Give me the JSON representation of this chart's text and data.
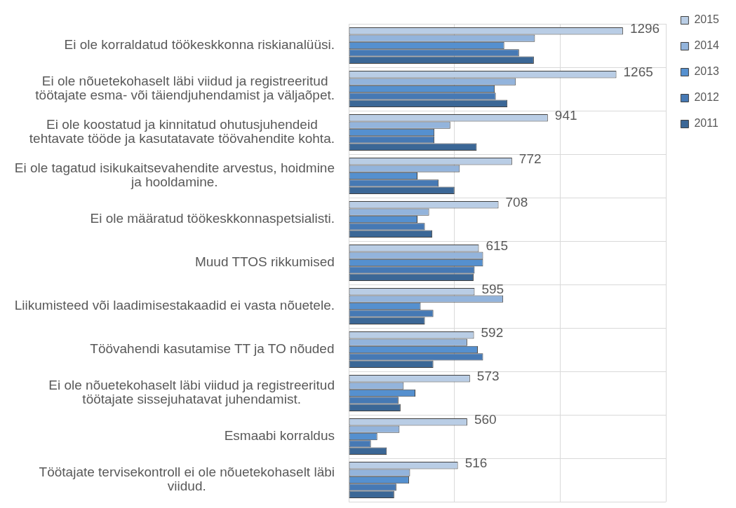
{
  "chart_data": {
    "type": "bar",
    "orientation": "horizontal",
    "categories": [
      "Ei ole korraldatud töökeskkonna riskianalüüsi.",
      "Ei ole nõuetekohaselt läbi viidud ja registreeritud\ntöötajate esma- või täiendjuhendamist ja väljaõpet.",
      "Ei ole koostatud ja kinnitatud ohutusjuhendeid\ntehtavate tööde ja kasutatavate töövahendite kohta.",
      "Ei ole tagatud isikukaitsevahendite arvestus, hoidmine\nja hooldamine.",
      "Ei ole määratud töökeskkonnaspetsialisti.",
      "Muud TTOS rikkumised",
      "Liikumisteed või laadimisestakaadid ei vasta nõuetele.",
      "Töövahendi kasutamise TT ja TO nõuded",
      "Ei ole nõuetekohaselt läbi viidud ja registreeritud\ntöötajate sissejuhatavat juhendamist.",
      "Esmaabi korraldus",
      "Töötajate tervisekontroll ei ole nõuetekohaselt läbi\nviidud."
    ],
    "series": [
      {
        "name": "2015",
        "color": "#b9cde5",
        "values": [
          1296,
          1265,
          941,
          772,
          708,
          615,
          595,
          592,
          573,
          560,
          516
        ],
        "value_labels": [
          "1296",
          "1265",
          "941",
          "772",
          "708",
          "615",
          "595",
          "592",
          "573",
          "560",
          "516"
        ]
      },
      {
        "name": "2014",
        "color": "#93b4dc",
        "values": [
          880,
          790,
          480,
          525,
          380,
          635,
          730,
          560,
          260,
          240,
          290
        ]
      },
      {
        "name": "2013",
        "color": "#5590cf",
        "values": [
          735,
          690,
          405,
          325,
          325,
          635,
          340,
          610,
          315,
          135,
          285
        ]
      },
      {
        "name": "2012",
        "color": "#4679b4",
        "values": [
          805,
          695,
          405,
          425,
          360,
          595,
          400,
          635,
          235,
          105,
          225
        ]
      },
      {
        "name": "2011",
        "color": "#3b6796",
        "values": [
          875,
          750,
          605,
          500,
          395,
          590,
          360,
          400,
          245,
          180,
          215
        ]
      }
    ],
    "xlim": [
      0,
      1500
    ],
    "xticks": [
      {
        "value": 0,
        "label": null
      },
      {
        "value": 500,
        "label": null
      },
      {
        "value": 1000,
        "label": null
      },
      {
        "value": 1500,
        "label": null
      }
    ],
    "tick_labels": "y",
    "grid": true,
    "legend": "top right"
  }
}
